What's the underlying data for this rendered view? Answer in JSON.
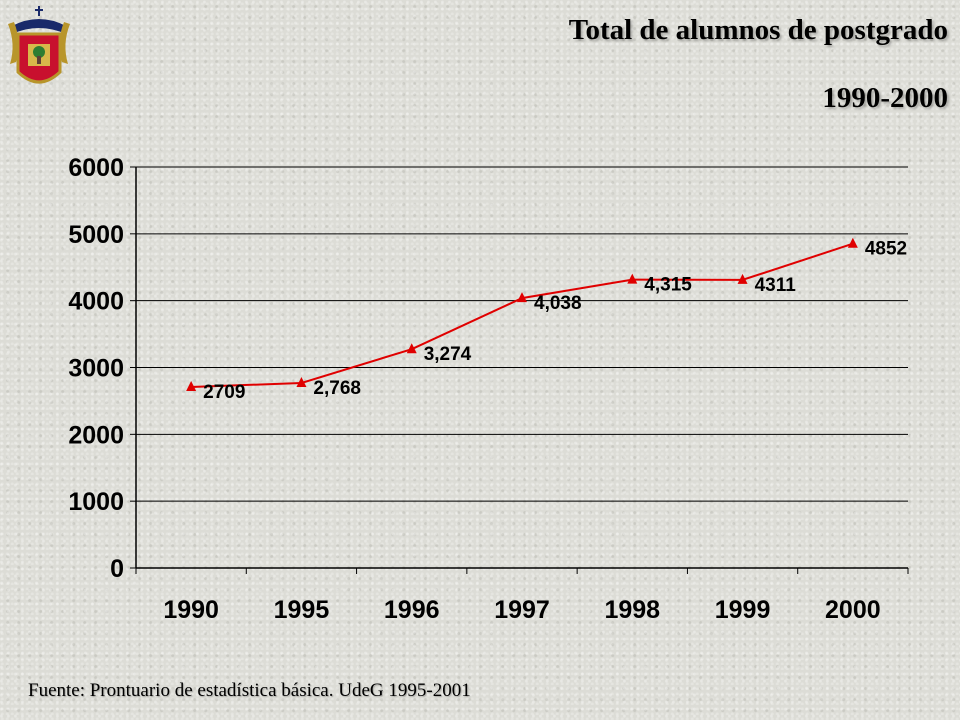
{
  "header": {
    "title_line1": "Total de alumnos de postgrado",
    "title_line2": "1990-2000",
    "logo_text": "UNIVERSIDAD DE GUADALAJARA"
  },
  "footer": {
    "source": "Fuente: Prontuario de estadística básica. UdeG 1995-2001"
  },
  "colors": {
    "series": "#e00000",
    "grid": "#000000"
  },
  "chart_data": {
    "type": "line",
    "title": "Total de alumnos de postgrado",
    "subtitle": "1990-2000",
    "categories": [
      "1990",
      "1995",
      "1996",
      "1997",
      "1998",
      "1999",
      "2000"
    ],
    "series": [
      {
        "values": [
          2709,
          2768,
          3274,
          4038,
          4315,
          4311,
          4852
        ],
        "data_labels": [
          "2709",
          "2,768",
          "3,274",
          "4,038",
          "4,315",
          "4311",
          "4852"
        ],
        "marker": "triangle"
      }
    ],
    "ylim": [
      0,
      6000
    ],
    "yticks": [
      "0",
      "1000",
      "2000",
      "3000",
      "4000",
      "5000",
      "6000"
    ],
    "grid": true,
    "legend": "none"
  }
}
